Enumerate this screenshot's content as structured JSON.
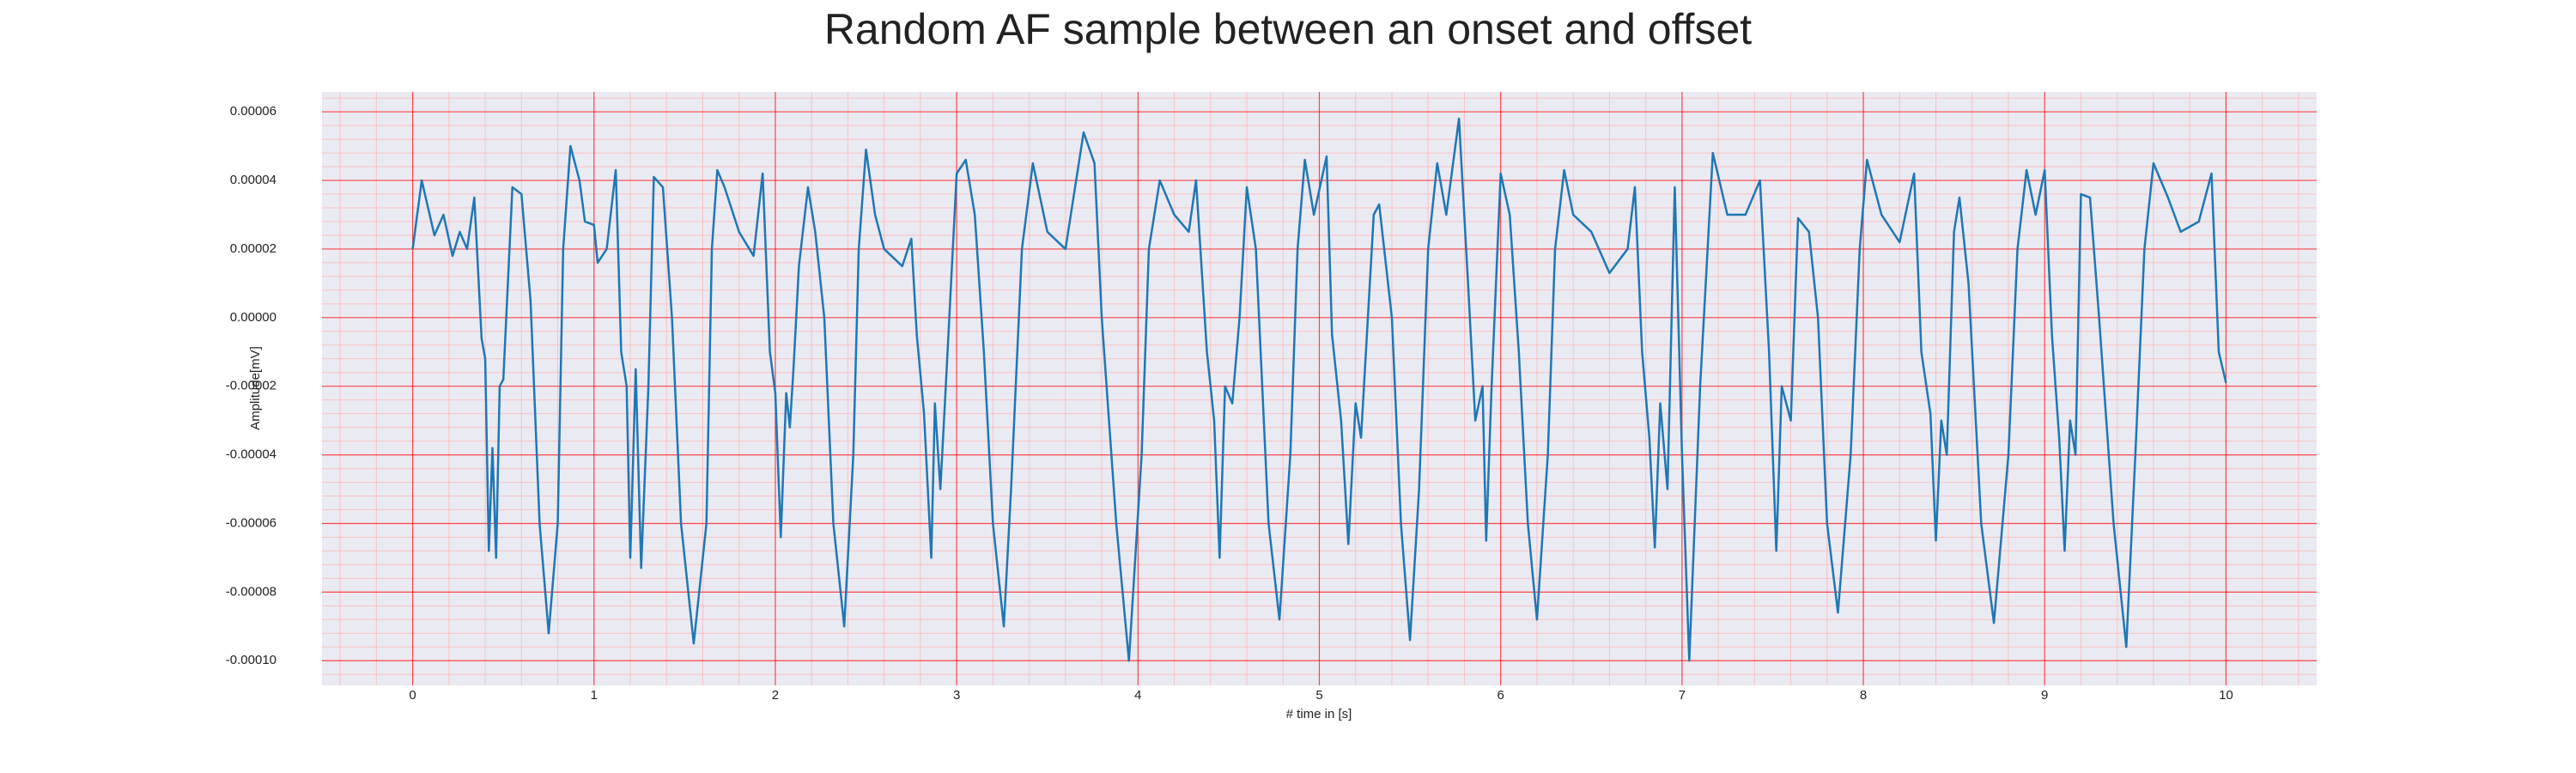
{
  "chart_data": {
    "type": "line",
    "title": "Random AF sample between an onset and offset",
    "xlabel": "# time in [s]",
    "ylabel": "Amplitude[mV]",
    "x": [
      0,
      0.05,
      0.12,
      0.17,
      0.22,
      0.26,
      0.3,
      0.34,
      0.38,
      0.4,
      0.42,
      0.44,
      0.46,
      0.48,
      0.5,
      0.55,
      0.6,
      0.65,
      0.7,
      0.75,
      0.8,
      0.83,
      0.87,
      0.92,
      0.95,
      1.0,
      1.02,
      1.07,
      1.12,
      1.15,
      1.18,
      1.2,
      1.23,
      1.26,
      1.3,
      1.33,
      1.38,
      1.43,
      1.48,
      1.55,
      1.62,
      1.65,
      1.68,
      1.72,
      1.8,
      1.88,
      1.93,
      1.97,
      2.0,
      2.03,
      2.06,
      2.08,
      2.1,
      2.13,
      2.18,
      2.22,
      2.27,
      2.32,
      2.38,
      2.43,
      2.46,
      2.5,
      2.55,
      2.6,
      2.7,
      2.75,
      2.78,
      2.82,
      2.86,
      2.88,
      2.91,
      2.94,
      3.0,
      3.05,
      3.1,
      3.15,
      3.2,
      3.26,
      3.3,
      3.36,
      3.42,
      3.5,
      3.6,
      3.7,
      3.76,
      3.8,
      3.88,
      3.95,
      4.02,
      4.06,
      4.12,
      4.2,
      4.28,
      4.32,
      4.38,
      4.42,
      4.45,
      4.48,
      4.52,
      4.56,
      4.6,
      4.65,
      4.72,
      4.78,
      4.84,
      4.88,
      4.92,
      4.97,
      5.04,
      5.07,
      5.12,
      5.16,
      5.2,
      5.23,
      5.3,
      5.33,
      5.4,
      5.45,
      5.5,
      5.55,
      5.6,
      5.65,
      5.7,
      5.77,
      5.82,
      5.86,
      5.9,
      5.92,
      5.95,
      6.0,
      6.05,
      6.1,
      6.15,
      6.2,
      6.26,
      6.3,
      6.35,
      6.4,
      6.5,
      6.6,
      6.7,
      6.74,
      6.78,
      6.82,
      6.85,
      6.88,
      6.92,
      6.96,
      7.0,
      7.04,
      7.1,
      7.17,
      7.25,
      7.35,
      7.43,
      7.48,
      7.52,
      7.55,
      7.6,
      7.64,
      7.7,
      7.75,
      7.8,
      7.86,
      7.93,
      7.98,
      8.02,
      8.1,
      8.2,
      8.28,
      8.32,
      8.37,
      8.4,
      8.43,
      8.46,
      8.5,
      8.53,
      8.58,
      8.65,
      8.72,
      8.8,
      8.85,
      8.9,
      8.95,
      9.0,
      9.04,
      9.08,
      9.11,
      9.14,
      9.17,
      9.2,
      9.25,
      9.3,
      9.38,
      9.45,
      9.5,
      9.55,
      9.6,
      9.68,
      9.75,
      9.85,
      9.92,
      9.96,
      10.0
    ],
    "values": [
      2e-05,
      4e-05,
      2.4e-05,
      3e-05,
      1.8e-05,
      2.5e-05,
      2e-05,
      3.5e-05,
      -6e-06,
      -1.2e-05,
      -6.8e-05,
      -3.8e-05,
      -7e-05,
      -2e-05,
      -1.8e-05,
      3.8e-05,
      3.6e-05,
      5e-06,
      -6e-05,
      -9.2e-05,
      -6e-05,
      2e-05,
      5e-05,
      4e-05,
      2.8e-05,
      2.7e-05,
      1.6e-05,
      2e-05,
      4.3e-05,
      -1e-05,
      -2e-05,
      -7e-05,
      -1.5e-05,
      -7.3e-05,
      -2e-05,
      4.1e-05,
      3.8e-05,
      0,
      -6e-05,
      -9.5e-05,
      -6e-05,
      2e-05,
      4.3e-05,
      3.8e-05,
      2.5e-05,
      1.8e-05,
      4.2e-05,
      -1e-05,
      -2.2e-05,
      -6.4e-05,
      -2.2e-05,
      -3.2e-05,
      -1.5e-05,
      1.5e-05,
      3.8e-05,
      2.5e-05,
      0,
      -6e-05,
      -9e-05,
      -4e-05,
      2e-05,
      4.9e-05,
      3e-05,
      2e-05,
      1.5e-05,
      2.3e-05,
      -5e-06,
      -2.8e-05,
      -7e-05,
      -2.5e-05,
      -5e-05,
      -2e-05,
      4.2e-05,
      4.6e-05,
      3e-05,
      -1e-05,
      -6e-05,
      -9e-05,
      -5e-05,
      2e-05,
      4.5e-05,
      2.5e-05,
      2e-05,
      5.4e-05,
      4.5e-05,
      0,
      -6e-05,
      -0.0001,
      -4e-05,
      2e-05,
      4e-05,
      3e-05,
      2.5e-05,
      4e-05,
      -1e-05,
      -3e-05,
      -7e-05,
      -2e-05,
      -2.5e-05,
      0,
      3.8e-05,
      2e-05,
      -6e-05,
      -8.8e-05,
      -4e-05,
      2e-05,
      4.6e-05,
      3e-05,
      4.7e-05,
      -5e-06,
      -3e-05,
      -6.6e-05,
      -2.5e-05,
      -3.5e-05,
      3e-05,
      3.3e-05,
      0,
      -6e-05,
      -9.4e-05,
      -5e-05,
      2e-05,
      4.5e-05,
      3e-05,
      5.8e-05,
      1e-05,
      -3e-05,
      -2e-05,
      -6.5e-05,
      -2e-05,
      4.2e-05,
      3e-05,
      -1e-05,
      -6e-05,
      -8.8e-05,
      -4e-05,
      2e-05,
      4.3e-05,
      3e-05,
      2.5e-05,
      1.3e-05,
      2e-05,
      3.8e-05,
      -1e-05,
      -3.5e-05,
      -6.7e-05,
      -2.5e-05,
      -5e-05,
      3.8e-05,
      -4e-05,
      -0.0001,
      -2e-05,
      4.8e-05,
      3e-05,
      3e-05,
      4e-05,
      -1e-05,
      -6.8e-05,
      -2e-05,
      -3e-05,
      2.9e-05,
      2.5e-05,
      0,
      -6e-05,
      -8.6e-05,
      -4e-05,
      2e-05,
      4.6e-05,
      3e-05,
      2.2e-05,
      4.2e-05,
      -1e-05,
      -2.8e-05,
      -6.5e-05,
      -3e-05,
      -4e-05,
      2.5e-05,
      3.5e-05,
      1e-05,
      -6e-05,
      -8.9e-05,
      -4e-05,
      2e-05,
      4.3e-05,
      3e-05,
      4.3e-05,
      -5e-06,
      -3.5e-05,
      -6.8e-05,
      -3e-05,
      -4e-05,
      3.6e-05,
      3.5e-05,
      0,
      -6e-05,
      -9.6e-05,
      -4e-05,
      2e-05,
      4.5e-05,
      3.5e-05,
      2.5e-05,
      2.8e-05,
      4.2e-05,
      -1e-05,
      -1.9e-05
    ],
    "color": "#1f77b4",
    "xlim": [
      -0.5,
      10.5
    ],
    "xticks": [
      0,
      1,
      2,
      3,
      4,
      5,
      6,
      7,
      8,
      9,
      10
    ],
    "ylim": [
      -0.0001072,
      6.58e-05
    ],
    "yticks": [
      {
        "value": -0.0001,
        "label": "-0.00010"
      },
      -8e-05,
      -6e-05,
      -4e-05,
      -2e-05,
      {
        "value": 0,
        "label": "0.00000"
      },
      2e-05,
      4e-05,
      6e-05
    ],
    "grid": true,
    "grid_color": "#ff0000",
    "minor_grid_color": "#ffb0b0",
    "minor_grid_divisions": 5,
    "background": "#eaeaf2"
  }
}
